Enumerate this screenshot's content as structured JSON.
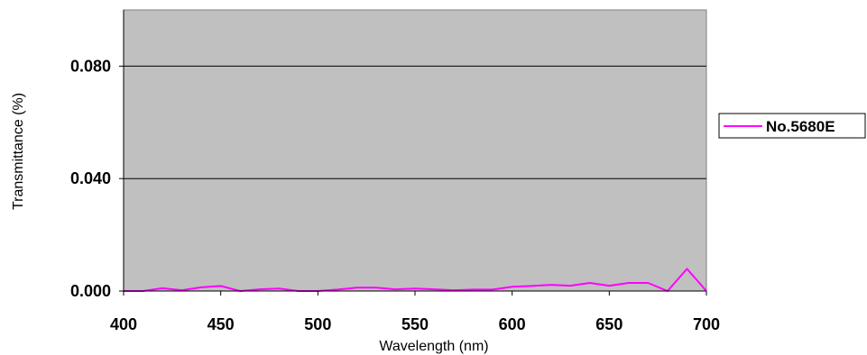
{
  "chart_data": {
    "type": "line",
    "title": "",
    "xlabel": "Wavelength (nm)",
    "ylabel": "Transmittance (%)",
    "xlim": [
      400,
      700
    ],
    "ylim": [
      0,
      0.1
    ],
    "x_ticks": [
      400,
      450,
      500,
      550,
      600,
      650,
      700
    ],
    "x_tick_labels": [
      "400",
      "450",
      "500",
      "550",
      "600",
      "650",
      "700"
    ],
    "y_ticks": [
      0,
      0.04,
      0.08
    ],
    "y_tick_labels": [
      "0.000",
      "0.040",
      "0.080"
    ],
    "grid": "horizontal",
    "legend_position": "right",
    "plot_background": "#c0c0c0",
    "series": [
      {
        "name": "No.5680E",
        "color": "#ff00ff",
        "x": [
          400,
          410,
          420,
          430,
          440,
          450,
          460,
          470,
          480,
          490,
          500,
          510,
          520,
          530,
          540,
          550,
          560,
          570,
          580,
          590,
          600,
          610,
          620,
          630,
          640,
          650,
          660,
          670,
          680,
          690,
          700
        ],
        "y": [
          0.0,
          0.0,
          0.001,
          0.0003,
          0.0013,
          0.0018,
          0.0,
          0.0006,
          0.0009,
          0.0,
          0.0,
          0.0005,
          0.0012,
          0.0012,
          0.0006,
          0.0009,
          0.0006,
          0.0003,
          0.0005,
          0.0005,
          0.0015,
          0.0018,
          0.0022,
          0.0019,
          0.0029,
          0.0019,
          0.0029,
          0.0029,
          0.0,
          0.0079,
          0.0
        ]
      }
    ]
  }
}
